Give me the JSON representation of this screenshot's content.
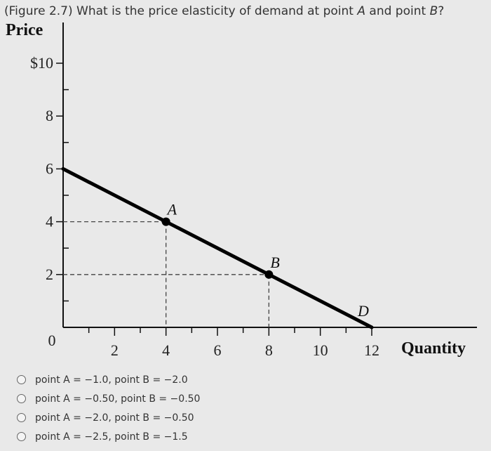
{
  "question": {
    "prefix": "(Figure 2.7) What is the price elasticity of demand at point ",
    "point_a": "A",
    "middle": " and point ",
    "point_b": "B",
    "suffix": "?"
  },
  "chart_data": {
    "type": "line",
    "ylabel": "Price",
    "xlabel": "Quantity",
    "x_ticks": [
      0,
      2,
      4,
      6,
      8,
      10,
      12
    ],
    "x_tick_labels": [
      "0",
      "2",
      "4",
      "6",
      "8",
      "10",
      "12"
    ],
    "y_ticks": [
      2,
      4,
      6,
      8,
      10
    ],
    "y_tick_labels": [
      "2",
      "4",
      "6",
      "8",
      "$10"
    ],
    "xlim": [
      0,
      12
    ],
    "ylim": [
      0,
      10
    ],
    "series": [
      {
        "name": "D",
        "points": [
          [
            0,
            6
          ],
          [
            12,
            0
          ]
        ]
      }
    ],
    "points": [
      {
        "label": "A",
        "x": 4,
        "y": 4
      },
      {
        "label": "B",
        "x": 8,
        "y": 2
      }
    ],
    "grid": false
  },
  "options": [
    {
      "label": "point A = −1.0, point B = −2.0"
    },
    {
      "label": "point A = −0.50, point B = −0.50"
    },
    {
      "label": "point A = −2.0, point B = −0.50"
    },
    {
      "label": "point A = −2.5, point B = −1.5"
    }
  ]
}
